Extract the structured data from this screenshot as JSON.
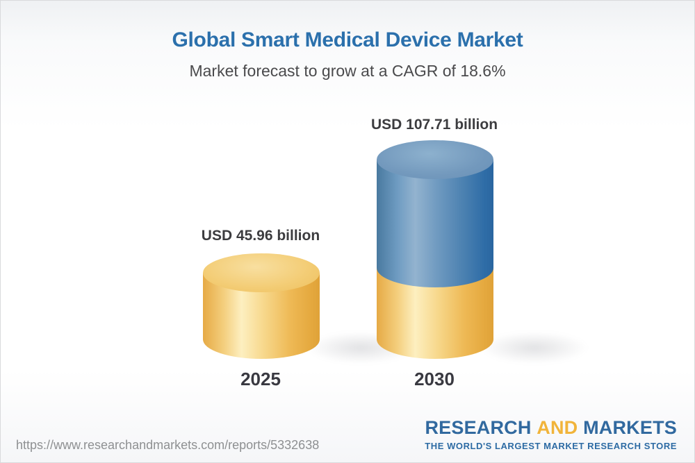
{
  "header": {
    "title": "Global Smart Medical Device Market",
    "subtitle": "Market forecast to grow at a CAGR of 18.6%"
  },
  "chart_data": {
    "type": "bar",
    "bar_style": "3d-cylinder",
    "categories": [
      "2025",
      "2030"
    ],
    "values": [
      45.96,
      107.71
    ],
    "unit": "USD billion",
    "data_labels": [
      "USD 45.96 billion",
      "USD 107.71 billion"
    ],
    "cagr_percent": 18.6,
    "title": "Global Smart Medical Device Market",
    "subtitle": "Market forecast to grow at a CAGR of 18.6%",
    "legend": "none",
    "grid": "off",
    "series_colors": {
      "base_segment": "#f2c567",
      "growth_segment": "#4a80b0"
    }
  },
  "bars": [
    {
      "year": "2025",
      "value_label": "USD 45.96 billion"
    },
    {
      "year": "2030",
      "value_label": "USD 107.71 billion"
    }
  ],
  "footer": {
    "url": "https://www.researchandmarkets.com/reports/5332638",
    "logo": {
      "research": "RESEARCH",
      "and": "AND",
      "markets": "MARKETS",
      "tagline": "THE WORLD'S LARGEST MARKET RESEARCH STORE"
    }
  },
  "colors": {
    "title_blue": "#2b70ac",
    "subtitle_gray": "#4a4a4c",
    "label_dark": "#3c3c3f",
    "bar_yellow": "#f2c567",
    "bar_blue": "#4a80b0",
    "url_gray": "#8e9092",
    "logo_blue": "#31699f",
    "logo_yellow": "#f1b43a",
    "background_top": "#eff1f3"
  }
}
